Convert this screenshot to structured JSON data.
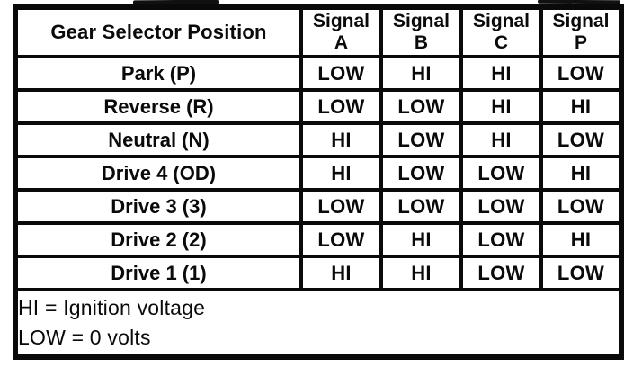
{
  "table": {
    "header": {
      "gear_column": "Gear Selector Position",
      "signals": [
        {
          "word": "Signal",
          "letter": "A"
        },
        {
          "word": "Signal",
          "letter": "B"
        },
        {
          "word": "Signal",
          "letter": "C"
        },
        {
          "word": "Signal",
          "letter": "P"
        }
      ]
    },
    "rows": [
      {
        "position": "Park (P)",
        "a": "LOW",
        "b": "HI",
        "c": "HI",
        "p": "LOW"
      },
      {
        "position": "Reverse (R)",
        "a": "LOW",
        "b": "LOW",
        "c": "HI",
        "p": "HI"
      },
      {
        "position": "Neutral (N)",
        "a": "HI",
        "b": "LOW",
        "c": "HI",
        "p": "LOW"
      },
      {
        "position": "Drive 4 (OD)",
        "a": "HI",
        "b": "LOW",
        "c": "LOW",
        "p": "HI"
      },
      {
        "position": "Drive 3 (3)",
        "a": "LOW",
        "b": "LOW",
        "c": "LOW",
        "p": "LOW"
      },
      {
        "position": "Drive 2 (2)",
        "a": "LOW",
        "b": "HI",
        "c": "LOW",
        "p": "HI"
      },
      {
        "position": "Drive 1 (1)",
        "a": "HI",
        "b": "HI",
        "c": "LOW",
        "p": "LOW"
      }
    ],
    "legend": {
      "line1": "HI = Ignition voltage",
      "line2": "LOW = 0 volts"
    }
  },
  "colors": {
    "ink": "#0a0a0a",
    "paper": "#ffffff"
  }
}
